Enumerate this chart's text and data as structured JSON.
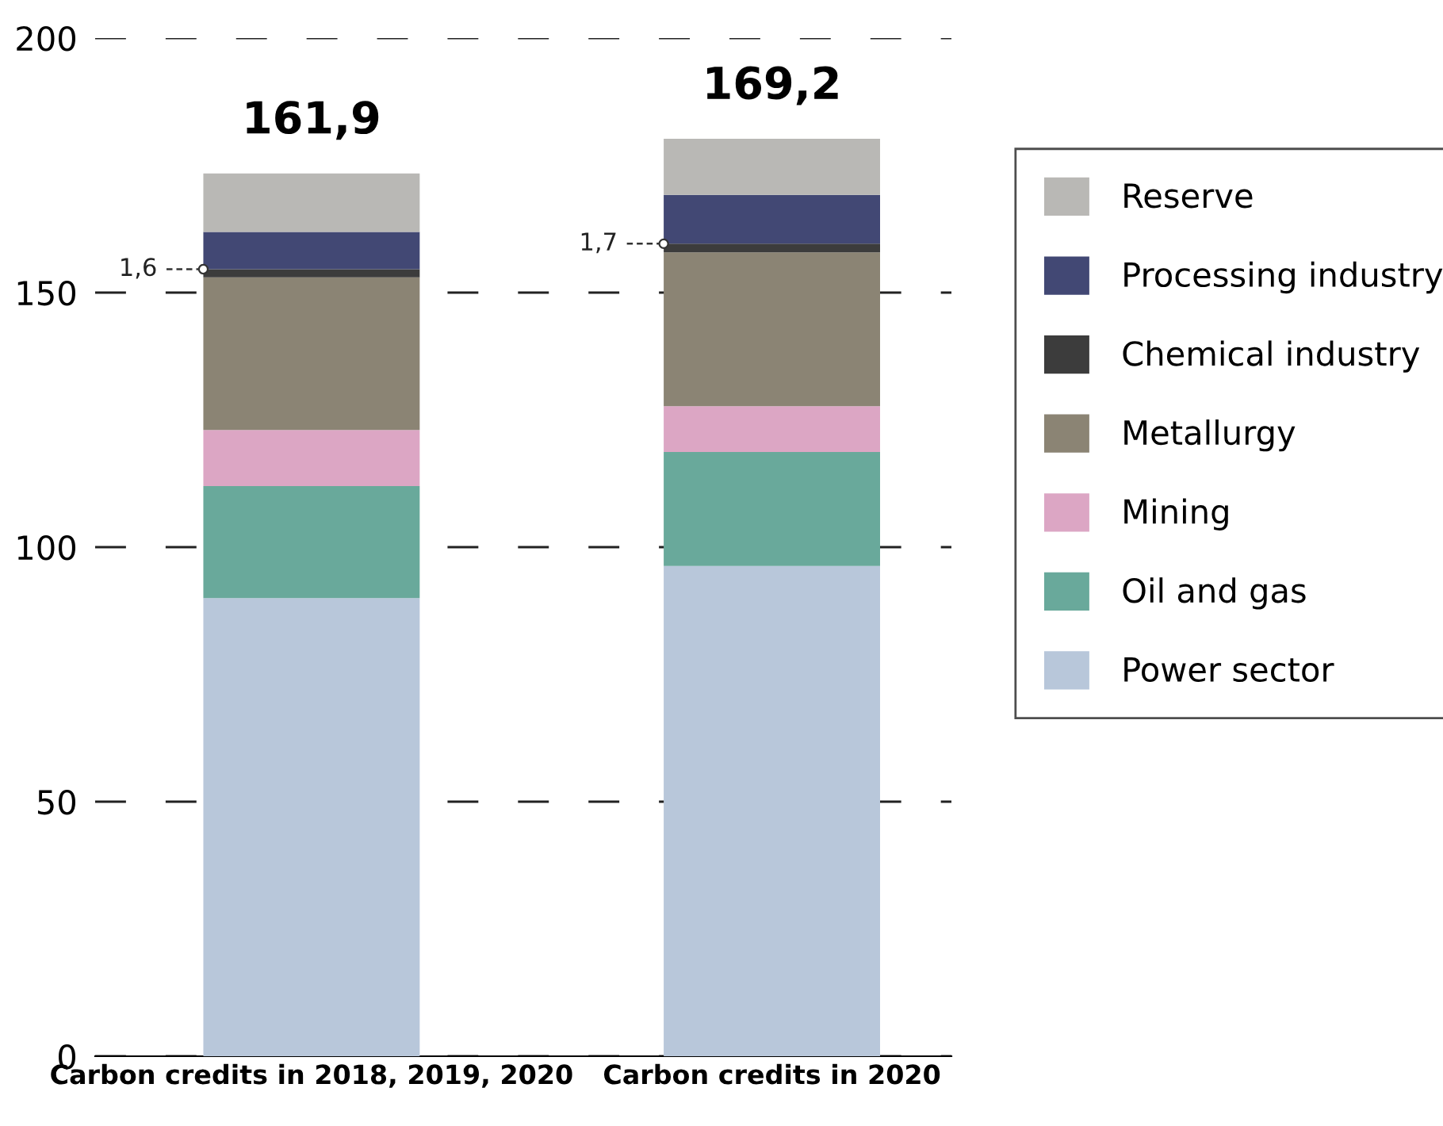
{
  "chart_data": {
    "type": "bar",
    "stacked": true,
    "categories": [
      "Carbon credits in 2018, 2019, 2020",
      "Carbon credits in 2020"
    ],
    "series": [
      {
        "name": "Power sector",
        "color": "#b8c7da",
        "values": [
          90,
          96.3
        ]
      },
      {
        "name": "Oil and gas",
        "color": "#69a99b",
        "values": [
          22,
          22.4
        ]
      },
      {
        "name": "Mining",
        "color": "#dca6c4",
        "values": [
          11,
          9
        ]
      },
      {
        "name": "Metallurgy",
        "color": "#8b8474",
        "values": [
          30,
          30.2
        ]
      },
      {
        "name": "Chemical industry",
        "color": "#3c3c3c",
        "values": [
          1.6,
          1.7
        ],
        "value_labels": [
          "1,6",
          "1,7"
        ]
      },
      {
        "name": "Processing industry",
        "color": "#424874",
        "values": [
          7.3,
          9.6
        ]
      },
      {
        "name": "Reserve",
        "color": "#b9b8b5",
        "values": [
          11.5,
          11
        ]
      }
    ],
    "ylim": [
      0,
      200
    ],
    "yticks": [
      0,
      50,
      100,
      150,
      200
    ],
    "grid": "y",
    "legend": "right",
    "annotations": [
      {
        "text": "161,9",
        "x": "Carbon credits in 2018, 2019, 2020",
        "y": 173.4
      },
      {
        "text": "169,2",
        "x": "Carbon credits in 2020",
        "y": 180.2
      }
    ]
  }
}
